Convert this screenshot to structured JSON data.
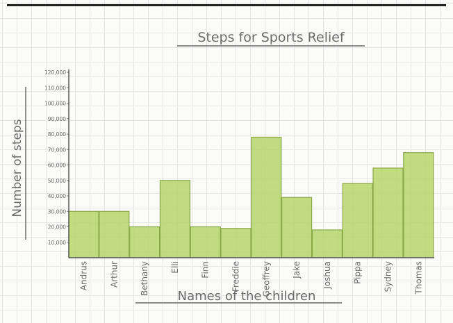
{
  "chart_data": {
    "type": "bar",
    "title": "Steps for Sports Relief",
    "xlabel": "Names of the children",
    "ylabel": "Number of steps",
    "ylim": [
      0,
      120000
    ],
    "yticks": [
      "10,000",
      "20,000",
      "30,000",
      "40,000",
      "50,000",
      "60,000",
      "70,000",
      "80,000",
      "90,000",
      "100,000",
      "110,000",
      "120,000"
    ],
    "categories": [
      "Andrus",
      "Arthur",
      "Bethany",
      "Elli",
      "Finn",
      "Freddie",
      "Geoffrey",
      "Jake",
      "Joshua",
      "Pippa",
      "Sydney",
      "Thomas"
    ],
    "values": [
      30000,
      30000,
      20000,
      50000,
      20000,
      19000,
      78000,
      39000,
      18000,
      48000,
      58000,
      68000
    ],
    "bar_color": "#b5d56a",
    "bar_edge_color": "#8aa848",
    "grid": true,
    "legend": "none"
  }
}
